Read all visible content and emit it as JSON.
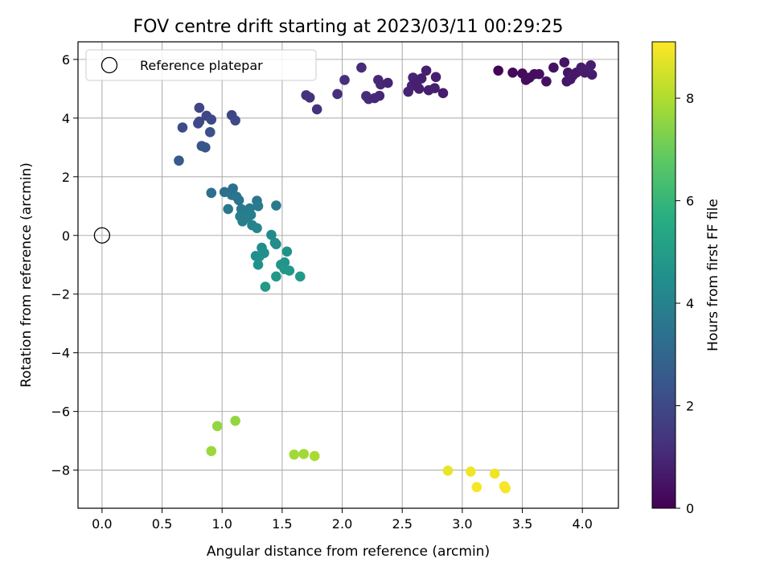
{
  "chart_data": {
    "type": "scatter",
    "title": "FOV centre drift starting at 2023/03/11 00:29:25",
    "xlabel": "Angular distance from reference (arcmin)",
    "ylabel": "Rotation from reference (arcmin)",
    "xlim": [
      -0.2,
      4.3
    ],
    "ylim": [
      -9.3,
      6.6
    ],
    "xticks": [
      0.0,
      0.5,
      1.0,
      1.5,
      2.0,
      2.5,
      3.0,
      3.5,
      4.0
    ],
    "xtick_labels": [
      "0.0",
      "0.5",
      "1.0",
      "1.5",
      "2.0",
      "2.5",
      "3.0",
      "3.5",
      "4.0"
    ],
    "yticks": [
      6,
      4,
      2,
      0,
      -2,
      -4,
      -6,
      -8
    ],
    "ytick_labels": [
      "6",
      "4",
      "2",
      "0",
      "−2",
      "−4",
      "−6",
      "−8"
    ],
    "grid": true,
    "legend": {
      "placement": "top-left",
      "entries": [
        "Reference platepar"
      ]
    },
    "reference_point": {
      "x": 0.0,
      "y": 0.0,
      "style": "open-circle"
    },
    "colorbar": {
      "label": "Hours from first FF file",
      "colormap": "viridis",
      "range": [
        0,
        9.1
      ],
      "ticks": [
        0,
        2,
        4,
        6,
        8
      ],
      "tick_labels": [
        "0",
        "2",
        "4",
        "6",
        "8"
      ]
    },
    "points": [
      {
        "x": 3.3,
        "y": 5.62,
        "c": 0.1
      },
      {
        "x": 3.42,
        "y": 5.55,
        "c": 0.2
      },
      {
        "x": 3.5,
        "y": 5.52,
        "c": 0.2
      },
      {
        "x": 3.53,
        "y": 5.3,
        "c": 0.3
      },
      {
        "x": 3.56,
        "y": 5.38,
        "c": 0.3
      },
      {
        "x": 3.6,
        "y": 5.5,
        "c": 0.3
      },
      {
        "x": 3.64,
        "y": 5.5,
        "c": 0.4
      },
      {
        "x": 3.7,
        "y": 5.25,
        "c": 0.4
      },
      {
        "x": 3.76,
        "y": 5.72,
        "c": 0.4
      },
      {
        "x": 3.85,
        "y": 5.9,
        "c": 0.5
      },
      {
        "x": 3.87,
        "y": 5.25,
        "c": 0.5
      },
      {
        "x": 3.88,
        "y": 5.55,
        "c": 0.5
      },
      {
        "x": 3.9,
        "y": 5.32,
        "c": 0.6
      },
      {
        "x": 3.92,
        "y": 5.45,
        "c": 0.6
      },
      {
        "x": 3.95,
        "y": 5.55,
        "c": 0.6
      },
      {
        "x": 3.99,
        "y": 5.72,
        "c": 0.7
      },
      {
        "x": 4.02,
        "y": 5.55,
        "c": 0.7
      },
      {
        "x": 4.07,
        "y": 5.8,
        "c": 0.7
      },
      {
        "x": 4.08,
        "y": 5.48,
        "c": 0.7
      },
      {
        "x": 1.7,
        "y": 4.78,
        "c": 1.3
      },
      {
        "x": 1.73,
        "y": 4.7,
        "c": 1.3
      },
      {
        "x": 1.79,
        "y": 4.3,
        "c": 1.3
      },
      {
        "x": 1.96,
        "y": 4.82,
        "c": 1.2
      },
      {
        "x": 2.02,
        "y": 5.3,
        "c": 1.2
      },
      {
        "x": 2.16,
        "y": 5.72,
        "c": 1.1
      },
      {
        "x": 2.2,
        "y": 4.75,
        "c": 1.1
      },
      {
        "x": 2.22,
        "y": 4.65,
        "c": 1.1
      },
      {
        "x": 2.27,
        "y": 4.68,
        "c": 1.0
      },
      {
        "x": 2.3,
        "y": 5.3,
        "c": 1.0
      },
      {
        "x": 2.31,
        "y": 4.76,
        "c": 1.0
      },
      {
        "x": 2.32,
        "y": 5.15,
        "c": 1.0
      },
      {
        "x": 2.38,
        "y": 5.2,
        "c": 0.9
      },
      {
        "x": 2.55,
        "y": 4.9,
        "c": 0.9
      },
      {
        "x": 2.58,
        "y": 5.1,
        "c": 0.9
      },
      {
        "x": 2.59,
        "y": 5.38,
        "c": 0.9
      },
      {
        "x": 2.62,
        "y": 5.2,
        "c": 0.8
      },
      {
        "x": 2.64,
        "y": 5.0,
        "c": 0.8
      },
      {
        "x": 2.66,
        "y": 5.35,
        "c": 0.8
      },
      {
        "x": 2.7,
        "y": 5.62,
        "c": 0.8
      },
      {
        "x": 2.72,
        "y": 4.95,
        "c": 0.8
      },
      {
        "x": 2.77,
        "y": 5.02,
        "c": 0.8
      },
      {
        "x": 2.78,
        "y": 5.4,
        "c": 0.8
      },
      {
        "x": 2.84,
        "y": 4.85,
        "c": 0.7
      },
      {
        "x": 0.64,
        "y": 2.55,
        "c": 2.6
      },
      {
        "x": 0.67,
        "y": 3.68,
        "c": 2.1
      },
      {
        "x": 0.81,
        "y": 4.35,
        "c": 1.9
      },
      {
        "x": 0.81,
        "y": 3.88,
        "c": 2.0
      },
      {
        "x": 0.83,
        "y": 3.05,
        "c": 2.4
      },
      {
        "x": 0.86,
        "y": 3.0,
        "c": 2.4
      },
      {
        "x": 0.87,
        "y": 4.08,
        "c": 1.9
      },
      {
        "x": 0.9,
        "y": 3.52,
        "c": 2.2
      },
      {
        "x": 0.91,
        "y": 3.95,
        "c": 2.0
      },
      {
        "x": 1.08,
        "y": 4.1,
        "c": 1.9
      },
      {
        "x": 1.11,
        "y": 3.92,
        "c": 2.0
      },
      {
        "x": 0.8,
        "y": 3.82,
        "c": 2.0
      },
      {
        "x": 0.91,
        "y": 1.45,
        "c": 3.3
      },
      {
        "x": 1.02,
        "y": 1.48,
        "c": 3.3
      },
      {
        "x": 1.05,
        "y": 0.9,
        "c": 3.6
      },
      {
        "x": 1.08,
        "y": 1.38,
        "c": 3.4
      },
      {
        "x": 1.09,
        "y": 1.6,
        "c": 3.3
      },
      {
        "x": 1.12,
        "y": 1.32,
        "c": 3.5
      },
      {
        "x": 1.14,
        "y": 1.2,
        "c": 3.5
      },
      {
        "x": 1.15,
        "y": 0.65,
        "c": 3.8
      },
      {
        "x": 1.16,
        "y": 0.9,
        "c": 3.7
      },
      {
        "x": 1.17,
        "y": 0.48,
        "c": 3.9
      },
      {
        "x": 1.2,
        "y": 0.8,
        "c": 3.8
      },
      {
        "x": 1.21,
        "y": 0.6,
        "c": 3.9
      },
      {
        "x": 1.23,
        "y": 0.92,
        "c": 3.7
      },
      {
        "x": 1.24,
        "y": 0.7,
        "c": 3.9
      },
      {
        "x": 1.25,
        "y": 0.35,
        "c": 4.0
      },
      {
        "x": 1.29,
        "y": 1.18,
        "c": 3.6
      },
      {
        "x": 1.3,
        "y": 1.0,
        "c": 3.7
      },
      {
        "x": 1.29,
        "y": 0.25,
        "c": 4.1
      },
      {
        "x": 1.45,
        "y": 1.02,
        "c": 3.7
      },
      {
        "x": 1.28,
        "y": -0.7,
        "c": 4.5
      },
      {
        "x": 1.31,
        "y": -0.72,
        "c": 4.5
      },
      {
        "x": 1.3,
        "y": -1.0,
        "c": 4.6
      },
      {
        "x": 1.33,
        "y": -0.42,
        "c": 4.4
      },
      {
        "x": 1.35,
        "y": -0.6,
        "c": 4.5
      },
      {
        "x": 1.36,
        "y": -1.75,
        "c": 4.9
      },
      {
        "x": 1.41,
        "y": 0.02,
        "c": 4.3
      },
      {
        "x": 1.44,
        "y": -0.25,
        "c": 4.4
      },
      {
        "x": 1.45,
        "y": -0.3,
        "c": 4.4
      },
      {
        "x": 1.45,
        "y": -1.4,
        "c": 4.8
      },
      {
        "x": 1.49,
        "y": -1.0,
        "c": 4.7
      },
      {
        "x": 1.52,
        "y": -0.92,
        "c": 4.7
      },
      {
        "x": 1.52,
        "y": -1.15,
        "c": 4.8
      },
      {
        "x": 1.54,
        "y": -0.55,
        "c": 4.6
      },
      {
        "x": 1.56,
        "y": -1.2,
        "c": 4.8
      },
      {
        "x": 1.65,
        "y": -1.4,
        "c": 4.9
      },
      {
        "x": 0.91,
        "y": -7.35,
        "c": 7.7
      },
      {
        "x": 0.96,
        "y": -6.5,
        "c": 7.6
      },
      {
        "x": 1.11,
        "y": -6.32,
        "c": 7.6
      },
      {
        "x": 1.6,
        "y": -7.47,
        "c": 7.8
      },
      {
        "x": 1.68,
        "y": -7.45,
        "c": 7.8
      },
      {
        "x": 1.77,
        "y": -7.52,
        "c": 7.9
      },
      {
        "x": 2.88,
        "y": -8.02,
        "c": 8.8
      },
      {
        "x": 3.07,
        "y": -8.05,
        "c": 8.9
      },
      {
        "x": 3.12,
        "y": -8.58,
        "c": 9.0
      },
      {
        "x": 3.27,
        "y": -8.12,
        "c": 8.9
      },
      {
        "x": 3.35,
        "y": -8.55,
        "c": 9.0
      },
      {
        "x": 3.36,
        "y": -8.62,
        "c": 9.0
      }
    ]
  }
}
